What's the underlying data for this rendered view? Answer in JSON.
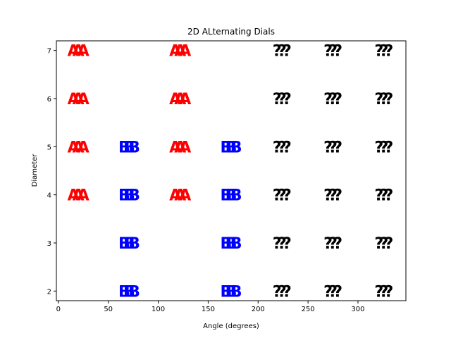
{
  "chart_data": {
    "type": "scatter",
    "title": "2D ALternating Dials",
    "xlabel": "Angle (degrees)",
    "ylabel": "Diameter",
    "xlim": [
      -2,
      348
    ],
    "ylim": [
      1.8,
      7.2
    ],
    "xticks": [
      0,
      50,
      100,
      150,
      200,
      250,
      300
    ],
    "yticks": [
      2,
      3,
      4,
      5,
      6,
      7
    ],
    "grid": false,
    "series": [
      {
        "marker": "A",
        "color": "#ff0000",
        "points": [
          {
            "x": 15,
            "y": 4
          },
          {
            "x": 20,
            "y": 4
          },
          {
            "x": 25,
            "y": 4
          },
          {
            "x": 15,
            "y": 5
          },
          {
            "x": 20,
            "y": 5
          },
          {
            "x": 25,
            "y": 5
          },
          {
            "x": 15,
            "y": 6
          },
          {
            "x": 20,
            "y": 6
          },
          {
            "x": 25,
            "y": 6
          },
          {
            "x": 15,
            "y": 7
          },
          {
            "x": 20,
            "y": 7
          },
          {
            "x": 25,
            "y": 7
          },
          {
            "x": 117,
            "y": 4
          },
          {
            "x": 122,
            "y": 4
          },
          {
            "x": 127,
            "y": 4
          },
          {
            "x": 117,
            "y": 5
          },
          {
            "x": 122,
            "y": 5
          },
          {
            "x": 127,
            "y": 5
          },
          {
            "x": 117,
            "y": 6
          },
          {
            "x": 122,
            "y": 6
          },
          {
            "x": 127,
            "y": 6
          },
          {
            "x": 117,
            "y": 7
          },
          {
            "x": 122,
            "y": 7
          },
          {
            "x": 127,
            "y": 7
          }
        ]
      },
      {
        "marker": "B",
        "color": "#0000ff",
        "points": [
          {
            "x": 66,
            "y": 2
          },
          {
            "x": 71,
            "y": 2
          },
          {
            "x": 76,
            "y": 2
          },
          {
            "x": 66,
            "y": 3
          },
          {
            "x": 71,
            "y": 3
          },
          {
            "x": 76,
            "y": 3
          },
          {
            "x": 66,
            "y": 4
          },
          {
            "x": 71,
            "y": 4
          },
          {
            "x": 76,
            "y": 4
          },
          {
            "x": 66,
            "y": 5
          },
          {
            "x": 71,
            "y": 5
          },
          {
            "x": 76,
            "y": 5
          },
          {
            "x": 168,
            "y": 2
          },
          {
            "x": 173,
            "y": 2
          },
          {
            "x": 178,
            "y": 2
          },
          {
            "x": 168,
            "y": 3
          },
          {
            "x": 173,
            "y": 3
          },
          {
            "x": 178,
            "y": 3
          },
          {
            "x": 168,
            "y": 4
          },
          {
            "x": 173,
            "y": 4
          },
          {
            "x": 178,
            "y": 4
          },
          {
            "x": 168,
            "y": 5
          },
          {
            "x": 173,
            "y": 5
          },
          {
            "x": 178,
            "y": 5
          }
        ]
      },
      {
        "marker": "?",
        "color": "#000000",
        "points": [
          {
            "x": 219,
            "y": 2
          },
          {
            "x": 224,
            "y": 2
          },
          {
            "x": 229,
            "y": 2
          },
          {
            "x": 219,
            "y": 3
          },
          {
            "x": 224,
            "y": 3
          },
          {
            "x": 229,
            "y": 3
          },
          {
            "x": 219,
            "y": 4
          },
          {
            "x": 224,
            "y": 4
          },
          {
            "x": 229,
            "y": 4
          },
          {
            "x": 219,
            "y": 5
          },
          {
            "x": 224,
            "y": 5
          },
          {
            "x": 229,
            "y": 5
          },
          {
            "x": 219,
            "y": 6
          },
          {
            "x": 224,
            "y": 6
          },
          {
            "x": 229,
            "y": 6
          },
          {
            "x": 219,
            "y": 7
          },
          {
            "x": 224,
            "y": 7
          },
          {
            "x": 229,
            "y": 7
          },
          {
            "x": 270,
            "y": 2
          },
          {
            "x": 275,
            "y": 2
          },
          {
            "x": 280,
            "y": 2
          },
          {
            "x": 270,
            "y": 3
          },
          {
            "x": 275,
            "y": 3
          },
          {
            "x": 280,
            "y": 3
          },
          {
            "x": 270,
            "y": 4
          },
          {
            "x": 275,
            "y": 4
          },
          {
            "x": 280,
            "y": 4
          },
          {
            "x": 270,
            "y": 5
          },
          {
            "x": 275,
            "y": 5
          },
          {
            "x": 280,
            "y": 5
          },
          {
            "x": 270,
            "y": 6
          },
          {
            "x": 275,
            "y": 6
          },
          {
            "x": 280,
            "y": 6
          },
          {
            "x": 270,
            "y": 7
          },
          {
            "x": 275,
            "y": 7
          },
          {
            "x": 280,
            "y": 7
          },
          {
            "x": 321,
            "y": 2
          },
          {
            "x": 326,
            "y": 2
          },
          {
            "x": 331,
            "y": 2
          },
          {
            "x": 321,
            "y": 3
          },
          {
            "x": 326,
            "y": 3
          },
          {
            "x": 331,
            "y": 3
          },
          {
            "x": 321,
            "y": 4
          },
          {
            "x": 326,
            "y": 4
          },
          {
            "x": 331,
            "y": 4
          },
          {
            "x": 321,
            "y": 5
          },
          {
            "x": 326,
            "y": 5
          },
          {
            "x": 331,
            "y": 5
          },
          {
            "x": 321,
            "y": 6
          },
          {
            "x": 326,
            "y": 6
          },
          {
            "x": 331,
            "y": 6
          },
          {
            "x": 321,
            "y": 7
          },
          {
            "x": 326,
            "y": 7
          },
          {
            "x": 331,
            "y": 7
          }
        ]
      }
    ]
  }
}
